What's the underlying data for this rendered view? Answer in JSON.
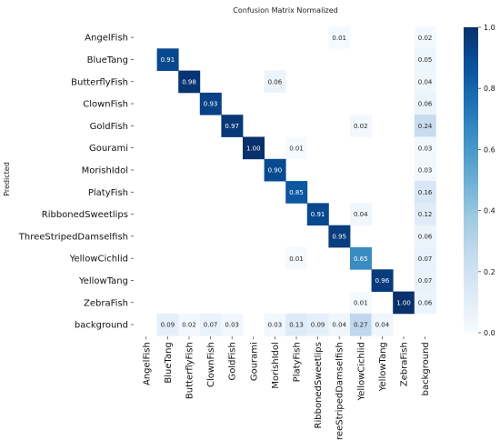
{
  "chart_data": {
    "type": "heatmap",
    "title": "Confusion Matrix Normalized",
    "ylabel": "Predicted",
    "xlabel": "",
    "row_labels": [
      "AngelFish",
      "BlueTang",
      "ButterflyFish",
      "ClownFish",
      "GoldFish",
      "Gourami",
      "MorishIdol",
      "PlatyFish",
      "RibbonedSweetlips",
      "ThreeStripedDamselfish",
      "YellowCichlid",
      "YellowTang",
      "ZebraFish",
      "background"
    ],
    "col_labels": [
      "AngelFish",
      "BlueTang",
      "ButterflyFish",
      "ClownFish",
      "GoldFish",
      "Gourami",
      "MorishIdol",
      "PlatyFish",
      "RibbonedSweetlips",
      "ThreeStripedDamselfish",
      "YellowCichlid",
      "YellowTang",
      "ZebraFish",
      "background"
    ],
    "col_label_display": [
      "AngelFish",
      "BlueTang",
      "ButterflyFish",
      "ClownFish",
      "GoldFish",
      "Gourami",
      "MorishIdol",
      "PlatyFish",
      "RibbonedSweetlips",
      "reeStripedDamselfish",
      "YellowCichlid",
      "YellowTang",
      "ZebraFish",
      "background"
    ],
    "matrix": [
      [
        null,
        null,
        null,
        null,
        null,
        null,
        null,
        null,
        null,
        0.01,
        null,
        null,
        null,
        0.02
      ],
      [
        null,
        0.91,
        null,
        null,
        null,
        null,
        null,
        null,
        null,
        null,
        null,
        null,
        null,
        0.05
      ],
      [
        null,
        null,
        0.98,
        null,
        null,
        null,
        0.06,
        null,
        null,
        null,
        null,
        null,
        null,
        0.04
      ],
      [
        null,
        null,
        null,
        0.93,
        null,
        null,
        null,
        null,
        null,
        null,
        null,
        null,
        null,
        0.06
      ],
      [
        null,
        null,
        null,
        null,
        0.97,
        null,
        null,
        null,
        null,
        null,
        0.02,
        null,
        null,
        0.24
      ],
      [
        null,
        null,
        null,
        null,
        null,
        1.0,
        null,
        0.01,
        null,
        null,
        null,
        null,
        null,
        0.03
      ],
      [
        null,
        null,
        null,
        null,
        null,
        null,
        0.9,
        null,
        null,
        null,
        null,
        null,
        null,
        0.03
      ],
      [
        null,
        null,
        null,
        null,
        null,
        null,
        null,
        0.85,
        null,
        null,
        null,
        null,
        null,
        0.16
      ],
      [
        null,
        null,
        null,
        null,
        null,
        null,
        null,
        null,
        0.91,
        null,
        0.04,
        null,
        null,
        0.12
      ],
      [
        null,
        null,
        null,
        null,
        null,
        null,
        null,
        null,
        null,
        0.95,
        null,
        null,
        null,
        0.06
      ],
      [
        null,
        null,
        null,
        null,
        null,
        null,
        null,
        0.01,
        null,
        null,
        0.65,
        null,
        null,
        0.07
      ],
      [
        null,
        null,
        null,
        null,
        null,
        null,
        null,
        null,
        null,
        null,
        null,
        0.96,
        null,
        0.07
      ],
      [
        null,
        null,
        null,
        null,
        null,
        null,
        null,
        null,
        null,
        null,
        0.01,
        null,
        1.0,
        0.06
      ],
      [
        null,
        0.09,
        0.02,
        0.07,
        0.03,
        null,
        0.03,
        0.13,
        0.09,
        0.04,
        0.27,
        0.04,
        null,
        null
      ]
    ],
    "colorbar": {
      "min": 0.0,
      "max": 1.0,
      "ticks": [
        "0.0",
        "0.2",
        "0.4",
        "0.6",
        "0.8",
        "1.0"
      ]
    },
    "colormap": [
      "#f7fbff",
      "#deebf7",
      "#c6dbef",
      "#9ecae1",
      "#6baed6",
      "#4292c6",
      "#2171b5",
      "#08519c",
      "#08306b"
    ]
  }
}
